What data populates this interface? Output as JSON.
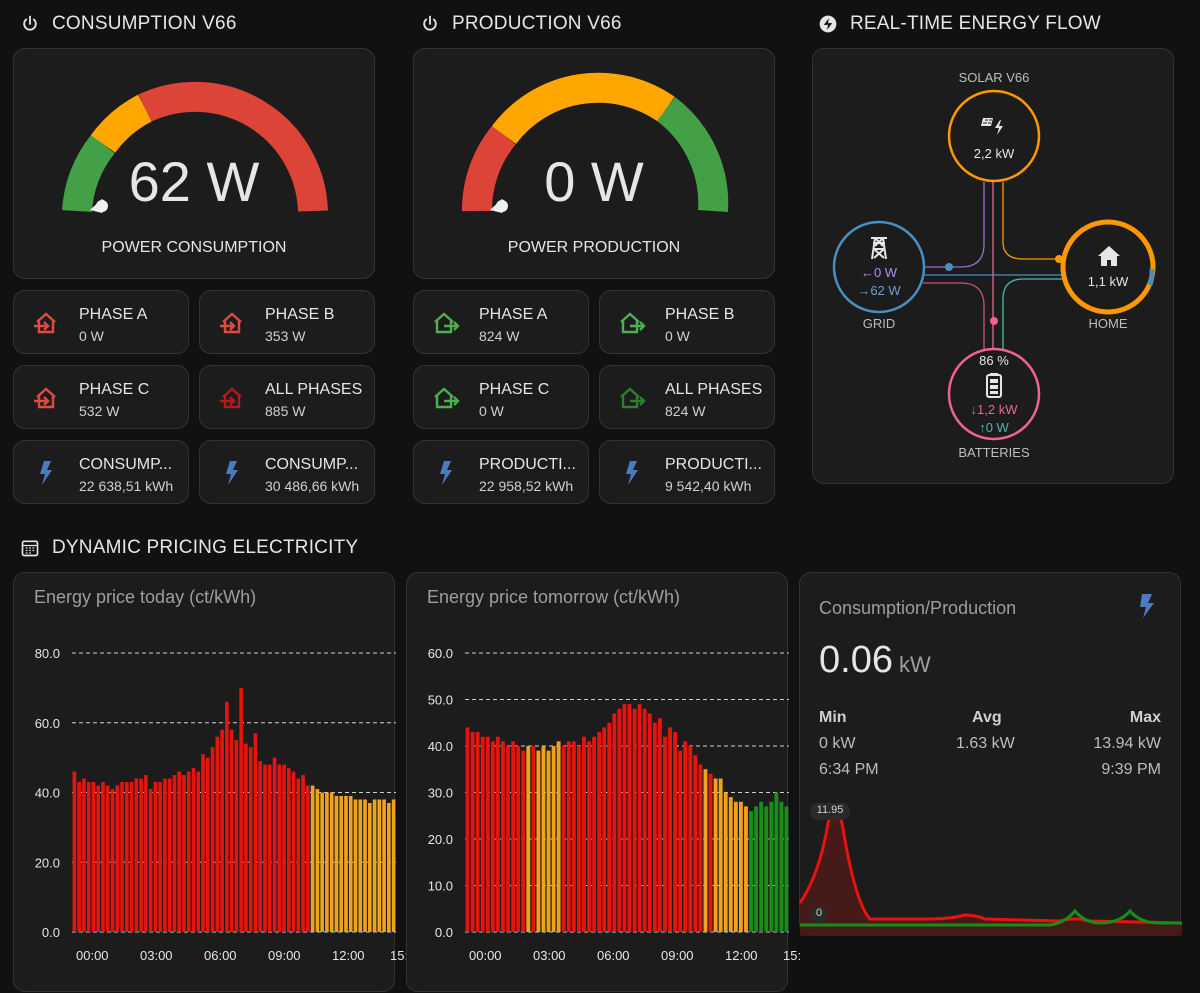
{
  "sections": {
    "consumption_title": "CONSUMPTION V66",
    "production_title": "PRODUCTION V66",
    "energy_flow_title": "REAL-TIME ENERGY FLOW",
    "pricing_title": "DYNAMIC PRICING ELECTRICITY"
  },
  "consumption_gauge": {
    "value": "62 W",
    "label": "POWER CONSUMPTION",
    "level": 0.02
  },
  "production_gauge": {
    "value": "0 W",
    "label": "POWER PRODUCTION",
    "level": 0.0
  },
  "consumption_tiles": [
    {
      "name": "PHASE A",
      "value": "0 W",
      "icon": "transmission-import-icon",
      "color": "#e04b3f"
    },
    {
      "name": "PHASE B",
      "value": "353 W",
      "icon": "transmission-import-icon",
      "color": "#e04b3f"
    },
    {
      "name": "PHASE C",
      "value": "532 W",
      "icon": "transmission-import-icon",
      "color": "#e04b3f"
    },
    {
      "name": "ALL PHASES",
      "value": "885 W",
      "icon": "transmission-import-icon",
      "color": "#b01b1b"
    },
    {
      "name": "CONSUMP...",
      "value": "22 638,51 kWh",
      "icon": "lightning-icon",
      "color": "#4a7bbf"
    },
    {
      "name": "CONSUMP...",
      "value": "30 486,66 kWh",
      "icon": "lightning-icon",
      "color": "#4a7bbf"
    }
  ],
  "production_tiles": [
    {
      "name": "PHASE A",
      "value": "824 W",
      "icon": "home-export-icon",
      "color": "#4caf50"
    },
    {
      "name": "PHASE B",
      "value": "0 W",
      "icon": "home-export-icon",
      "color": "#4caf50"
    },
    {
      "name": "PHASE C",
      "value": "0 W",
      "icon": "home-export-icon",
      "color": "#4caf50"
    },
    {
      "name": "ALL PHASES",
      "value": "824 W",
      "icon": "home-export-icon",
      "color": "#2e7d32"
    },
    {
      "name": "PRODUCTI...",
      "value": "22 958,52 kWh",
      "icon": "lightning-icon",
      "color": "#4a7bbf"
    },
    {
      "name": "PRODUCTI...",
      "value": "9 542,40 kWh",
      "icon": "lightning-icon",
      "color": "#4a7bbf"
    }
  ],
  "energy_flow": {
    "solar": {
      "label": "SOLAR V66",
      "value": "2,2 kW"
    },
    "grid": {
      "label": "GRID",
      "import": "←0 W",
      "export": "→62 W"
    },
    "home": {
      "label": "HOME",
      "value": "1,1 kW"
    },
    "batteries": {
      "label": "BATTERIES",
      "soc": "86 %",
      "discharge": "↓1,2 kW",
      "charge": "↑0 W"
    }
  },
  "price_today": {
    "title": "Energy price today (ct/kWh)",
    "chart_data": {
      "type": "bar",
      "ylim": [
        0,
        80
      ],
      "yticks": [
        "80.0",
        "60.0",
        "40.0",
        "20.0",
        "0.0"
      ],
      "xticks": [
        "00:00",
        "03:00",
        "06:00",
        "09:00",
        "12:00",
        "15:"
      ],
      "values": [
        46,
        43,
        44,
        43,
        43,
        42,
        43,
        42,
        41,
        42,
        43,
        43,
        43,
        44,
        44,
        45,
        41,
        43,
        43,
        44,
        44,
        45,
        46,
        45,
        46,
        47,
        46,
        51,
        50,
        53,
        56,
        58,
        66,
        58,
        55,
        70,
        54,
        53,
        57,
        49,
        48,
        48,
        50,
        48,
        48,
        47,
        46,
        44,
        45,
        42,
        42,
        41,
        40,
        40,
        40,
        39,
        39,
        39,
        39,
        38,
        38,
        38,
        37,
        38,
        38,
        38,
        37,
        38
      ],
      "colors_by_index": {
        "red_until": 50,
        "then": "orange"
      }
    }
  },
  "price_tomorrow": {
    "title": "Energy price tomorrow (ct/kWh)",
    "chart_data": {
      "type": "bar",
      "ylim": [
        0,
        60
      ],
      "yticks": [
        "60.0",
        "50.0",
        "40.0",
        "30.0",
        "20.0",
        "10.0",
        "0.0"
      ],
      "xticks": [
        "00:00",
        "03:00",
        "06:00",
        "09:00",
        "12:00",
        "15:"
      ],
      "values": [
        44,
        43,
        43,
        42,
        42,
        41,
        42,
        41,
        40,
        41,
        40,
        39,
        40,
        40,
        39,
        40,
        39,
        40,
        41,
        40,
        41,
        41,
        40,
        42,
        41,
        42,
        43,
        44,
        45,
        47,
        48,
        49,
        49,
        48,
        49,
        48,
        47,
        45,
        46,
        42,
        44,
        43,
        39,
        41,
        40,
        38,
        36,
        35,
        34,
        33,
        33,
        30,
        29,
        28,
        28,
        27,
        26,
        27,
        28,
        27,
        28,
        30,
        28,
        27
      ],
      "colors": [
        "r",
        "r",
        "r",
        "r",
        "r",
        "r",
        "r",
        "r",
        "r",
        "r",
        "r",
        "r",
        "o",
        "r",
        "o",
        "o",
        "o",
        "o",
        "o",
        "r",
        "r",
        "r",
        "r",
        "r",
        "r",
        "r",
        "r",
        "r",
        "r",
        "r",
        "r",
        "r",
        "r",
        "r",
        "r",
        "r",
        "r",
        "r",
        "r",
        "r",
        "r",
        "r",
        "r",
        "r",
        "r",
        "r",
        "r",
        "o",
        "r",
        "o",
        "o",
        "o",
        "o",
        "o",
        "o",
        "o",
        "g",
        "g",
        "g",
        "g",
        "g",
        "g",
        "g",
        "g"
      ]
    }
  },
  "consumption_production": {
    "title": "Consumption/Production",
    "value": "0.06",
    "unit": "kW",
    "min_label": "Min",
    "avg_label": "Avg",
    "max_label": "Max",
    "min_value": "0 kW",
    "avg_value": "1.63 kW",
    "max_value": "13.94 kW",
    "min_time": "6:34 PM",
    "max_time": "9:39 PM",
    "peak_label": "11.95",
    "zero_label": "0"
  },
  "colors": {
    "red": "#e5140f",
    "orange": "#f0a21c",
    "green": "#1a8c1a",
    "gauge_red": "#db4437",
    "gauge_orange": "#ffa600",
    "gauge_green": "#43a047",
    "solar": "#ff9800",
    "grid": "#488fc2",
    "home": "#ff9800",
    "battery": "#f06292"
  }
}
